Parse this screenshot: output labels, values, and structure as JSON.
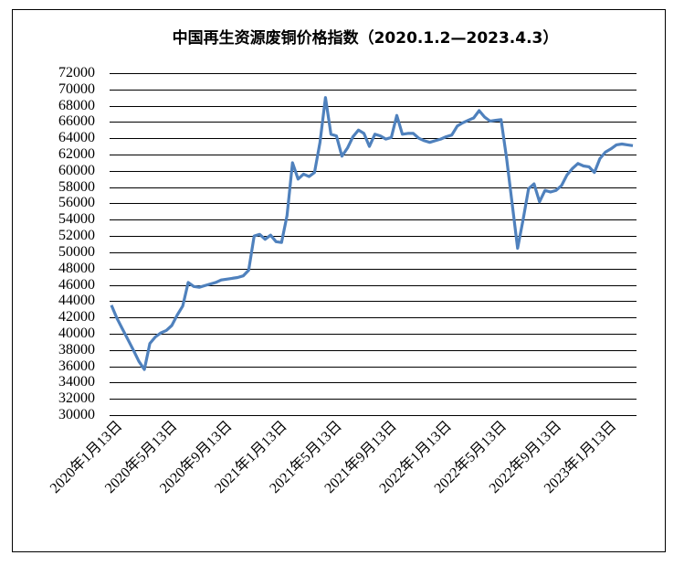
{
  "chart_data": {
    "type": "line",
    "title": "中国再生资源废铜价格指数（2020.1.2—2023.4.3）",
    "categories": [
      null,
      "2020年1月13日",
      null,
      null,
      null,
      null,
      null,
      null,
      null,
      null,
      null,
      "2020年5月13日",
      null,
      null,
      null,
      null,
      null,
      null,
      null,
      null,
      null,
      "2020年9月13日",
      null,
      null,
      null,
      null,
      null,
      null,
      null,
      null,
      null,
      "2021年1月13日",
      null,
      null,
      null,
      null,
      null,
      null,
      null,
      null,
      null,
      "2021年5月13日",
      null,
      null,
      null,
      null,
      null,
      null,
      null,
      null,
      null,
      "2021年9月13日",
      null,
      null,
      null,
      null,
      null,
      null,
      null,
      null,
      null,
      "2022年1月13日",
      null,
      null,
      null,
      null,
      null,
      null,
      null,
      null,
      null,
      "2022年5月13日",
      null,
      null,
      null,
      null,
      null,
      null,
      null,
      null,
      null,
      "2022年9月13日",
      null,
      null,
      null,
      null,
      null,
      null,
      null,
      null,
      null,
      "2023年1月13日",
      null,
      null,
      null,
      null
    ],
    "values": [
      43500,
      41900,
      40600,
      39300,
      38000,
      36600,
      35600,
      38800,
      39600,
      40100,
      40400,
      41000,
      42300,
      43400,
      46300,
      45800,
      45700,
      45900,
      46100,
      46300,
      46600,
      46700,
      46800,
      46900,
      47100,
      47800,
      52000,
      52200,
      51600,
      52100,
      51300,
      51200,
      54500,
      61000,
      59000,
      59600,
      59300,
      59800,
      63500,
      69000,
      64500,
      64300,
      61800,
      62800,
      64200,
      65000,
      64600,
      63000,
      64500,
      64300,
      63900,
      64100,
      66800,
      64500,
      64600,
      64600,
      64000,
      63700,
      63500,
      63700,
      63900,
      64200,
      64400,
      65500,
      65900,
      66200,
      66500,
      67400,
      66600,
      66100,
      66200,
      66300,
      61500,
      56000,
      50500,
      54000,
      57800,
      58400,
      56200,
      57600,
      57400,
      57600,
      58200,
      59500,
      60300,
      60900,
      60600,
      60500,
      59800,
      61500,
      62300,
      62700,
      63200,
      63300,
      63200,
      63100
    ],
    "color": "#4f81bd",
    "ylim": [
      30000,
      72000
    ],
    "yticks": [
      30000,
      32000,
      34000,
      36000,
      38000,
      40000,
      42000,
      44000,
      46000,
      48000,
      50000,
      52000,
      54000,
      56000,
      58000,
      60000,
      62000,
      64000,
      66000,
      68000,
      70000,
      72000
    ],
    "grid": true
  }
}
